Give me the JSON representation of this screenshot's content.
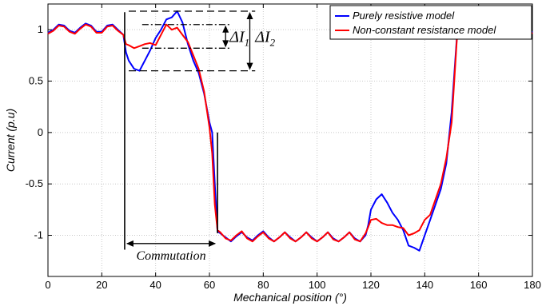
{
  "chart_data": {
    "type": "line",
    "title": "",
    "xlabel": "Mechanical position (°)",
    "ylabel": "Current (p.u)",
    "xlim": [
      0,
      180
    ],
    "ylim": [
      -1.4,
      1.25
    ],
    "x_ticks": [
      0,
      20,
      40,
      60,
      80,
      100,
      120,
      140,
      160,
      180
    ],
    "y_ticks": [
      -1,
      -0.5,
      0,
      0.5,
      1
    ],
    "x_tick_labels": [
      "0",
      "20",
      "40",
      "60",
      "80",
      "100",
      "120",
      "140",
      "160",
      "180"
    ],
    "y_tick_labels": [
      "-1",
      "-0.5",
      "0",
      "0.5",
      "1"
    ],
    "grid": true,
    "legend_position": "top-right",
    "series": [
      {
        "name": "Purely resistive model",
        "color": "#0000ff",
        "x": [
          0,
          2,
          4,
          6,
          8,
          10,
          12,
          14,
          16,
          18,
          20,
          22,
          24,
          26,
          28,
          29,
          30,
          32,
          34,
          36,
          38,
          40,
          42,
          44,
          46,
          48,
          50,
          52,
          54,
          56,
          58,
          60,
          61,
          62,
          63,
          64,
          66,
          68,
          70,
          72,
          74,
          76,
          78,
          80,
          82,
          84,
          86,
          88,
          90,
          92,
          94,
          96,
          98,
          100,
          102,
          104,
          106,
          108,
          110,
          112,
          114,
          116,
          118,
          119,
          120,
          122,
          124,
          126,
          128,
          130,
          132,
          134,
          136,
          138,
          140,
          142,
          144,
          146,
          148,
          150,
          152,
          154,
          156,
          158,
          160,
          162,
          164,
          166,
          168,
          170,
          172,
          174,
          176,
          178,
          180
        ],
        "y": [
          0.97,
          1.0,
          1.05,
          1.04,
          0.99,
          0.97,
          1.02,
          1.06,
          1.04,
          0.98,
          0.98,
          1.04,
          1.05,
          1.0,
          0.95,
          0.78,
          0.7,
          0.62,
          0.6,
          0.7,
          0.8,
          0.92,
          1.0,
          1.1,
          1.12,
          1.18,
          1.07,
          0.86,
          0.7,
          0.58,
          0.38,
          0.1,
          0.0,
          -0.5,
          -0.96,
          -0.98,
          -1.02,
          -1.06,
          -1.01,
          -0.97,
          -1.02,
          -1.05,
          -1.0,
          -0.96,
          -1.02,
          -1.06,
          -1.02,
          -0.97,
          -1.02,
          -1.06,
          -1.02,
          -0.97,
          -1.02,
          -1.06,
          -1.02,
          -0.97,
          -1.03,
          -1.06,
          -1.02,
          -0.97,
          -1.03,
          -1.06,
          -1.0,
          -0.9,
          -0.75,
          -0.65,
          -0.6,
          -0.68,
          -0.78,
          -0.85,
          -0.95,
          -1.1,
          -1.12,
          -1.15,
          -1.0,
          -0.85,
          -0.7,
          -0.55,
          -0.3,
          0.2,
          0.95,
          1.0,
          1.04,
          1.02,
          0.98,
          1.04,
          1.04,
          0.97,
          1.0,
          1.05,
          1.0,
          0.96,
          1.03,
          1.05,
          0.97
        ]
      },
      {
        "name": "Non-constant resistance model",
        "color": "#ff0000",
        "x": [
          0,
          2,
          4,
          6,
          8,
          10,
          12,
          14,
          16,
          18,
          20,
          22,
          24,
          26,
          28,
          29,
          30,
          32,
          34,
          36,
          38,
          40,
          42,
          44,
          46,
          48,
          50,
          52,
          54,
          56,
          58,
          60,
          61,
          62,
          63,
          64,
          66,
          68,
          70,
          72,
          74,
          76,
          78,
          80,
          82,
          84,
          86,
          88,
          90,
          92,
          94,
          96,
          98,
          100,
          102,
          104,
          106,
          108,
          110,
          112,
          114,
          116,
          118,
          119,
          120,
          122,
          124,
          126,
          128,
          130,
          132,
          134,
          136,
          138,
          140,
          142,
          144,
          146,
          148,
          150,
          152,
          154,
          156,
          158,
          160,
          162,
          164,
          166,
          168,
          170,
          172,
          174,
          176,
          178,
          180
        ],
        "y": [
          0.96,
          0.99,
          1.04,
          1.03,
          0.98,
          0.96,
          1.01,
          1.05,
          1.03,
          0.97,
          0.97,
          1.03,
          1.04,
          0.99,
          0.95,
          0.86,
          0.85,
          0.82,
          0.84,
          0.86,
          0.87,
          0.85,
          0.95,
          1.05,
          1.0,
          1.02,
          0.95,
          0.88,
          0.75,
          0.62,
          0.4,
          0.05,
          -0.2,
          -0.7,
          -0.95,
          -0.97,
          -1.03,
          -1.05,
          -1.0,
          -0.96,
          -1.03,
          -1.06,
          -1.01,
          -0.97,
          -1.03,
          -1.06,
          -1.02,
          -0.97,
          -1.03,
          -1.06,
          -1.02,
          -0.97,
          -1.03,
          -1.06,
          -1.02,
          -0.97,
          -1.04,
          -1.06,
          -1.02,
          -0.97,
          -1.04,
          -1.06,
          -0.98,
          -0.92,
          -0.85,
          -0.84,
          -0.88,
          -0.9,
          -0.9,
          -0.92,
          -0.93,
          -1.0,
          -0.98,
          -0.95,
          -0.85,
          -0.8,
          -0.65,
          -0.5,
          -0.25,
          0.1,
          0.93,
          0.99,
          1.03,
          1.01,
          0.97,
          1.03,
          1.03,
          0.96,
          0.99,
          1.04,
          0.99,
          0.95,
          1.02,
          1.04,
          0.96
        ]
      }
    ],
    "annotations": {
      "delta_i1_base": "ΔI",
      "delta_i1_sub": "1",
      "delta_i2_base": "ΔI",
      "delta_i2_sub": "2",
      "commutation": "Commutation"
    }
  }
}
